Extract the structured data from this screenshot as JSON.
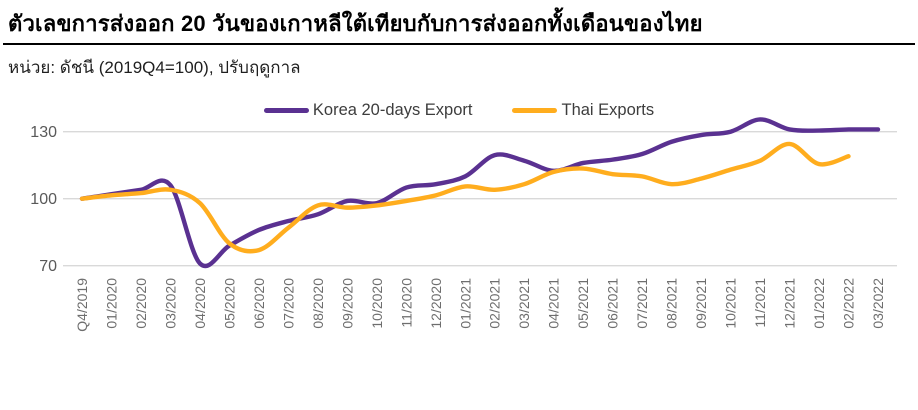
{
  "header": {
    "title": "ตัวเลขการส่งออก 20 วันของเกาหลีใต้เทียบกับการส่งออกทั้งเดือนของไทย",
    "subtitle": "หน่วย: ดัชนี (2019Q4=100), ปรับฤดูกาล"
  },
  "chart_data": {
    "type": "line",
    "title": "",
    "xlabel": "",
    "ylabel": "",
    "ylim": [
      70,
      130
    ],
    "y_ticks": [
      70,
      100,
      130
    ],
    "grid": "horizontal",
    "legend_position": "top",
    "grid_color": "#D9D9D9",
    "axis_label_color": "#595959",
    "tick_label_color": "#6E6E6E",
    "categories": [
      "Q4/2019",
      "01/2020",
      "02/2020",
      "03/2020",
      "04/2020",
      "05/2020",
      "06/2020",
      "07/2020",
      "08/2020",
      "09/2020",
      "10/2020",
      "11/2020",
      "12/2020",
      "01/2021",
      "02/2021",
      "03/2021",
      "04/2021",
      "05/2021",
      "06/2021",
      "07/2021",
      "08/2021",
      "09/2021",
      "10/2021",
      "11/2021",
      "12/2021",
      "01/2022",
      "02/2022",
      "03/2022"
    ],
    "series": [
      {
        "name": "Korea 20-days Export",
        "key": "korea-20-days-export",
        "color": "#5A3191",
        "values": [
          100,
          102,
          104,
          106,
          71,
          79,
          86,
          90,
          93,
          99,
          98,
          105,
          106.5,
          110,
          119.5,
          117,
          112.5,
          116,
          117.5,
          120,
          125.5,
          128.5,
          130,
          135.5,
          131,
          130.5,
          131,
          131
        ]
      },
      {
        "name": "Thai Exports",
        "key": "thai-exports",
        "color": "#FFAD1E",
        "values": [
          100,
          101.5,
          102.5,
          104,
          98,
          80,
          77,
          87,
          97,
          96,
          97,
          99,
          101.5,
          105.5,
          104,
          106.5,
          112,
          113.5,
          111,
          110,
          106.5,
          109,
          113,
          117,
          124.5,
          115.5,
          119,
          null
        ]
      }
    ]
  }
}
